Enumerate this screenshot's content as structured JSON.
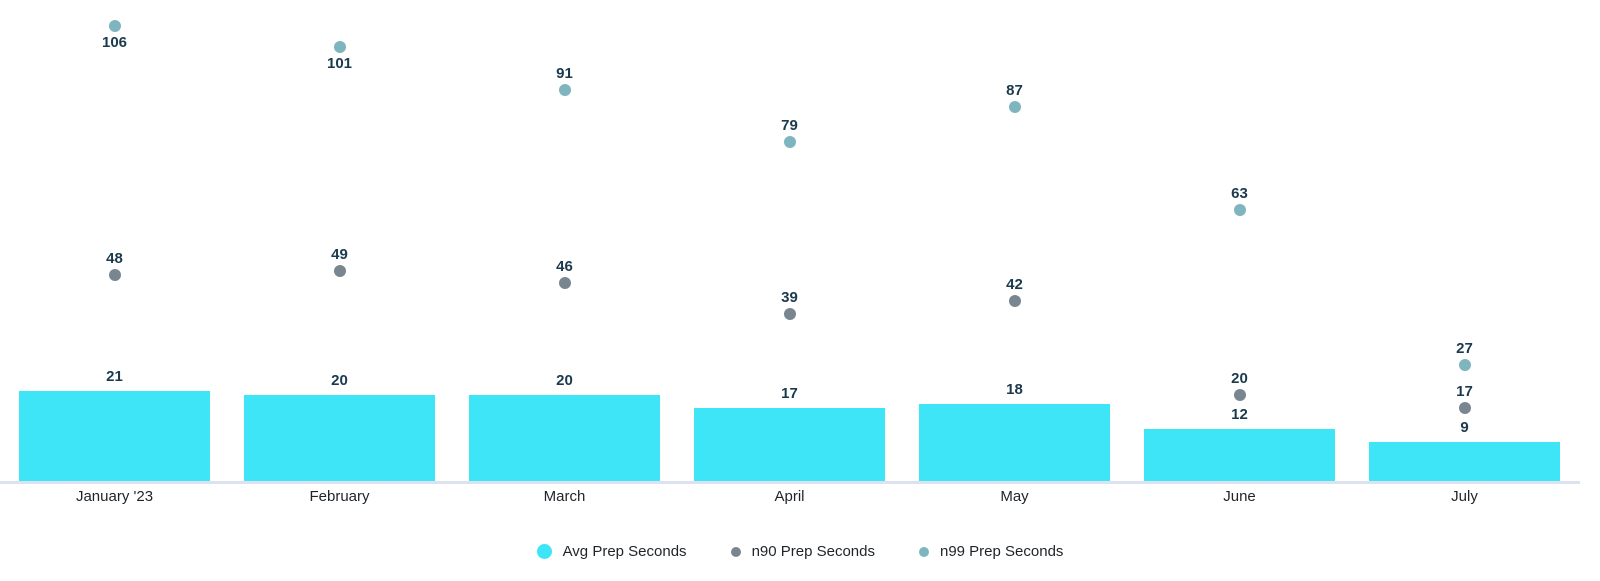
{
  "chart_data": {
    "type": "bar",
    "subtype": "bar-with-point-series",
    "title": "",
    "xlabel": "",
    "ylabel": "",
    "categories": [
      "January '23",
      "February",
      "March",
      "April",
      "May",
      "June",
      "July"
    ],
    "series": [
      {
        "name": "Avg Prep Seconds",
        "mark": "bar",
        "color": "#3de5f7",
        "values": [
          21,
          20,
          20,
          17,
          18,
          12,
          9
        ]
      },
      {
        "name": "n90 Prep Seconds",
        "mark": "point",
        "color": "#7a868f",
        "values": [
          48,
          49,
          46,
          39,
          42,
          20,
          17
        ]
      },
      {
        "name": "n99 Prep Seconds",
        "mark": "point",
        "color": "#7eb5bf",
        "values": [
          106,
          101,
          91,
          79,
          87,
          63,
          27
        ]
      }
    ],
    "ylim": [
      0,
      112
    ],
    "grid": false,
    "value_labels": true,
    "legend_position": "bottom"
  },
  "legend": {
    "items": [
      {
        "label": "Avg Prep Seconds",
        "swatch": "large",
        "color": "#3de5f7"
      },
      {
        "label": "n90 Prep Seconds",
        "swatch": "small",
        "color": "#7a868f"
      },
      {
        "label": "n99 Prep Seconds",
        "swatch": "small",
        "color": "#7eb5bf"
      }
    ]
  },
  "colors": {
    "bar": "#3de5f7",
    "n90_dot": "#7a868f",
    "n99_dot": "#7eb5bf",
    "value_label": "#1c3a4e",
    "axis_text": "#1f2429",
    "legend_text": "#1f2429",
    "axis_line": "#dde3ee",
    "background": "#ffffff"
  }
}
